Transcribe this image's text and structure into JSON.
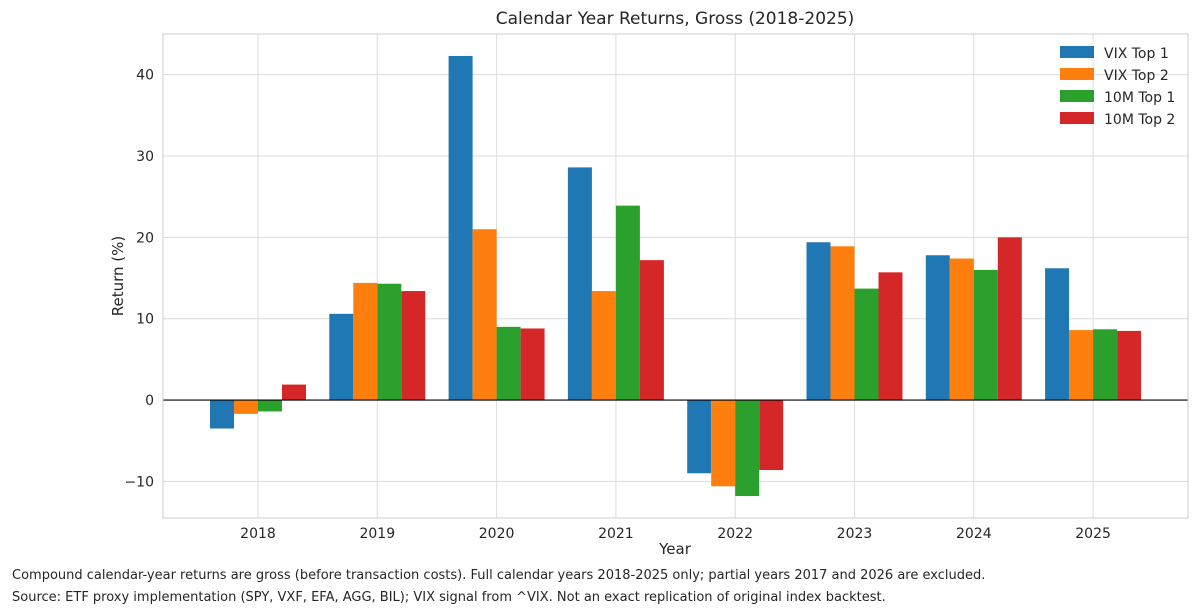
{
  "chart_data": {
    "type": "bar",
    "title": "Calendar Year Returns, Gross (2018-2025)",
    "xlabel": "Year",
    "ylabel": "Return (%)",
    "ylim": [
      -14.5,
      45
    ],
    "yticks": [
      -10,
      0,
      10,
      20,
      30,
      40
    ],
    "ytick_labels": [
      "−10",
      "0",
      "10",
      "20",
      "30",
      "40"
    ],
    "grid": true,
    "legend_position": "top-right",
    "categories": [
      "2018",
      "2019",
      "2020",
      "2021",
      "2022",
      "2023",
      "2024",
      "2025"
    ],
    "series": [
      {
        "name": "VIX Top 1",
        "color": "#1f77b4",
        "values": [
          -3.5,
          10.6,
          42.3,
          28.6,
          -9.0,
          19.4,
          17.8,
          16.2
        ]
      },
      {
        "name": "VIX Top 2",
        "color": "#ff7f0e",
        "values": [
          -1.7,
          14.4,
          21.0,
          13.4,
          -10.6,
          18.9,
          17.4,
          8.6
        ]
      },
      {
        "name": "10M Top 1",
        "color": "#2ca02c",
        "values": [
          -1.4,
          14.3,
          9.0,
          23.9,
          -11.8,
          13.7,
          16.0,
          8.7
        ]
      },
      {
        "name": "10M Top 2",
        "color": "#d62728",
        "values": [
          1.9,
          13.4,
          8.8,
          17.2,
          -8.6,
          15.7,
          20.0,
          8.5
        ]
      }
    ]
  },
  "footnotes": {
    "line1": "Compound calendar-year returns are gross (before transaction costs). Full calendar years 2018-2025 only; partial years 2017 and 2026 are excluded.",
    "line2": "Source: ETF proxy implementation (SPY, VXF, EFA, AGG, BIL); VIX signal from ^VIX. Not an exact replication of original index backtest."
  }
}
